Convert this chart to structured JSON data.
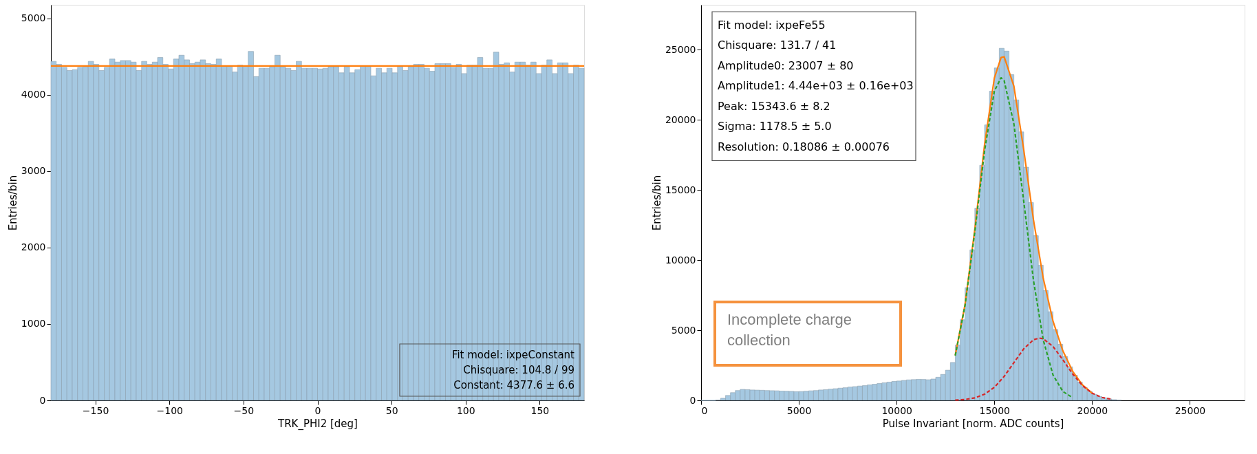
{
  "chart_data": [
    {
      "type": "histogram",
      "xlabel": "TRK_PHI2 [deg]",
      "ylabel": "Entries/bin",
      "color": "#a5c8e1",
      "bins": [
        -180,
        -176.4,
        -172.8,
        -169.2,
        -165.6,
        -162,
        -158.4,
        -154.8,
        -151.2,
        -147.6,
        -144,
        -140.4,
        -136.8,
        -133.2,
        -129.6,
        -126,
        -122.4,
        -118.8,
        -115.2,
        -111.6,
        -108,
        -104.4,
        -100.8,
        -97.2,
        -93.6,
        -90,
        -86.4,
        -82.8,
        -79.2,
        -75.6,
        -72,
        -68.4,
        -64.8,
        -61.2,
        -57.6,
        -54,
        -50.4,
        -46.8,
        -43.2,
        -39.6,
        -36,
        -32.4,
        -28.8,
        -25.2,
        -21.6,
        -18,
        -14.4,
        -10.8,
        -7.2,
        -3.6,
        0,
        3.6,
        7.2,
        10.8,
        14.4,
        18,
        21.6,
        25.2,
        28.8,
        32.4,
        36,
        39.6,
        43.2,
        46.8,
        50.4,
        54,
        57.6,
        61.2,
        64.8,
        68.4,
        72,
        75.6,
        79.2,
        82.8,
        86.4,
        90,
        93.6,
        97.2,
        100.8,
        104.4,
        108,
        111.6,
        115.2,
        118.8,
        122.4,
        126,
        129.6,
        133.2,
        136.8,
        140.4,
        144,
        147.6,
        151.2,
        154.8,
        158.4,
        162,
        165.6,
        169.2,
        172.8,
        176.4,
        180
      ],
      "values": [
        4440,
        4400,
        4360,
        4320,
        4330,
        4360,
        4370,
        4440,
        4400,
        4320,
        4360,
        4470,
        4430,
        4450,
        4450,
        4430,
        4320,
        4440,
        4400,
        4430,
        4490,
        4400,
        4340,
        4470,
        4520,
        4460,
        4410,
        4430,
        4460,
        4410,
        4400,
        4470,
        4380,
        4380,
        4300,
        4390,
        4380,
        4570,
        4240,
        4350,
        4350,
        4370,
        4520,
        4370,
        4350,
        4320,
        4440,
        4350,
        4350,
        4350,
        4340,
        4350,
        4370,
        4370,
        4290,
        4370,
        4290,
        4330,
        4380,
        4380,
        4250,
        4350,
        4290,
        4350,
        4290,
        4380,
        4320,
        4370,
        4400,
        4400,
        4350,
        4310,
        4410,
        4410,
        4410,
        4360,
        4400,
        4280,
        4390,
        4390,
        4490,
        4350,
        4350,
        4560,
        4400,
        4420,
        4300,
        4430,
        4430,
        4390,
        4430,
        4280,
        4390,
        4460,
        4280,
        4420,
        4420,
        4280,
        4390,
        4350
      ],
      "series": [
        {
          "type": "line",
          "color": "#ff7f0e",
          "line_style": "solid",
          "x": [
            -180,
            180
          ],
          "values": [
            4380,
            4380
          ]
        }
      ],
      "xlim": [
        -180,
        180
      ],
      "ylim": [
        0,
        5180
      ],
      "xticks": [
        -150,
        -100,
        -50,
        0,
        50,
        100,
        150
      ],
      "yticks": [
        0,
        1000,
        2000,
        3000,
        4000,
        5000
      ],
      "grid": false,
      "annotations": [
        "Fit model: ixpeConstant",
        "Chisquare: 104.8 / 99",
        "Constant: 4377.6 ± 6.6"
      ]
    },
    {
      "type": "histogram",
      "xlabel": "Pulse Invariant [norm. ADC counts]",
      "ylabel": "Entries/bin",
      "color": "#a5c8e1",
      "bins": [
        0,
        250,
        500,
        750,
        1000,
        1250,
        1500,
        1750,
        2000,
        2250,
        2500,
        2750,
        3000,
        3250,
        3500,
        3750,
        4000,
        4250,
        4500,
        4750,
        5000,
        5250,
        5500,
        5750,
        6000,
        6250,
        6500,
        6750,
        7000,
        7250,
        7500,
        7750,
        8000,
        8250,
        8500,
        8750,
        9000,
        9250,
        9500,
        9750,
        10000,
        10250,
        10500,
        10750,
        11000,
        11250,
        11500,
        11750,
        12000,
        12250,
        12500,
        12750,
        13000,
        13250,
        13500,
        13750,
        14000,
        14250,
        14500,
        14750,
        15000,
        15250,
        15500,
        15750,
        16000,
        16250,
        16500,
        16750,
        17000,
        17250,
        17500,
        17750,
        18000,
        18250,
        18500,
        18750,
        19000,
        19250,
        19500,
        19750,
        20000,
        20250,
        20500,
        20750,
        21000,
        21250,
        21500
      ],
      "values": [
        0,
        0,
        0,
        20,
        150,
        350,
        550,
        700,
        780,
        760,
        740,
        730,
        720,
        700,
        690,
        680,
        660,
        650,
        640,
        620,
        630,
        650,
        680,
        700,
        740,
        760,
        800,
        830,
        870,
        900,
        950,
        980,
        1020,
        1050,
        1100,
        1150,
        1200,
        1250,
        1300,
        1350,
        1380,
        1420,
        1460,
        1480,
        1500,
        1490,
        1470,
        1520,
        1650,
        1850,
        2150,
        2700,
        3940,
        5750,
        8030,
        10730,
        13700,
        16760,
        19640,
        22040,
        23700,
        25100,
        24900,
        23220,
        21420,
        19140,
        16620,
        14100,
        11740,
        9640,
        7830,
        6320,
        5050,
        4000,
        3120,
        2390,
        1790,
        1310,
        920,
        640,
        420,
        270,
        170,
        100,
        50,
        20
      ],
      "series": [
        {
          "type": "line",
          "color": "#ff7f0e",
          "line_style": "solid",
          "x": [
            13000,
            13500,
            14000,
            14500,
            15000,
            15343.6,
            15500,
            16000,
            16500,
            17000,
            17500,
            18000,
            18500,
            19000,
            19500,
            20000
          ],
          "values": [
            3210,
            6830,
            12190,
            18240,
            22980,
            24440,
            24500,
            22390,
            17890,
            12880,
            8700,
            5650,
            3540,
            2080,
            1110,
            510
          ]
        },
        {
          "type": "line",
          "color": "#2ca02c",
          "line_style": "dashed",
          "x": [
            13000,
            13500,
            14000,
            14500,
            15000,
            15343.6,
            15500,
            16000,
            16500,
            17000,
            17500,
            18000,
            18500,
            19000
          ],
          "values": [
            3190,
            6770,
            12010,
            17800,
            22050,
            23000,
            22800,
            19700,
            14220,
            8560,
            4310,
            1810,
            640,
            190
          ]
        },
        {
          "type": "line",
          "color": "#d62728",
          "line_style": "dashed",
          "x": [
            13000,
            13500,
            14000,
            14500,
            15000,
            15500,
            16000,
            16500,
            17000,
            17300,
            17500,
            18000,
            18500,
            19000,
            19500,
            20000,
            20500,
            21000
          ],
          "values": [
            20,
            60,
            180,
            440,
            930,
            1700,
            2690,
            3670,
            4320,
            4440,
            4390,
            3840,
            2900,
            1890,
            1060,
            510,
            210,
            80
          ]
        }
      ],
      "xlim": [
        0,
        27800
      ],
      "ylim": [
        0,
        28200
      ],
      "xticks": [
        0,
        5000,
        10000,
        15000,
        20000,
        25000
      ],
      "yticks": [
        0,
        5000,
        10000,
        15000,
        20000,
        25000
      ],
      "grid": false,
      "annotations": [
        "Fit model: ixpeFe55",
        "Chisquare: 131.7 / 41",
        "Amplitude0: 23007 ± 80",
        "Amplitude1: 4.44e+03 ± 0.16e+03",
        "Peak: 15343.6 ± 8.2",
        "Sigma: 1178.5 ± 5.0",
        "Resolution: 0.18086 ± 0.00076",
        "Incomplete charge collection"
      ]
    }
  ]
}
